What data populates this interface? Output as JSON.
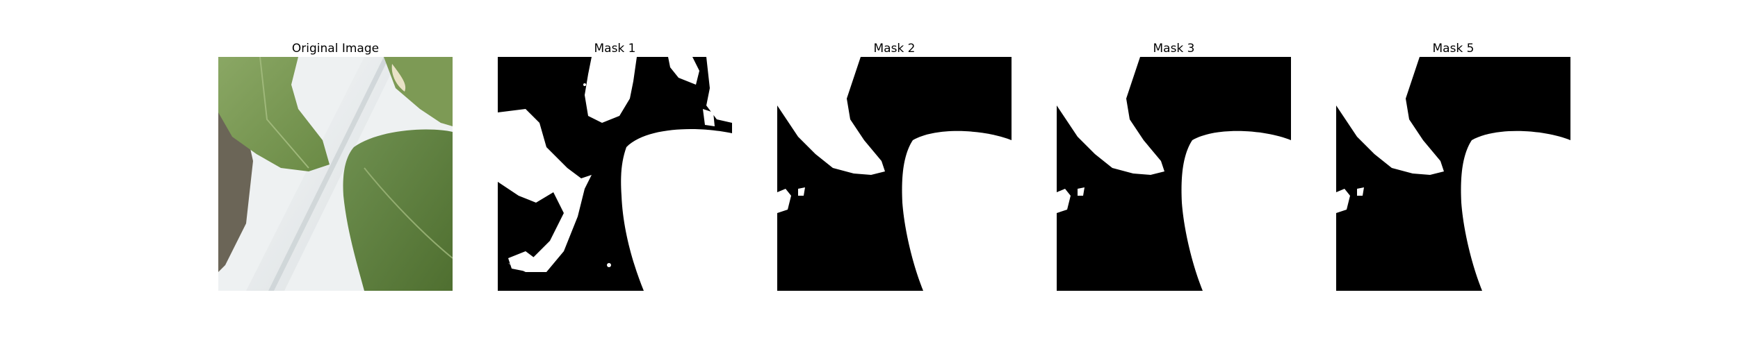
{
  "panels": [
    {
      "title": "Original Image"
    },
    {
      "title": "Mask 1"
    },
    {
      "title": "Mask 2"
    },
    {
      "title": "Mask 3"
    },
    {
      "title": "Mask 5"
    }
  ],
  "colors": {
    "mask_fg": "#ffffff",
    "mask_bg": "#000000",
    "leaf_light": "#7d9a55",
    "leaf_dark": "#5b7a3a",
    "pipe": "#e4e8ea",
    "background_white": "#f2f4f5"
  }
}
